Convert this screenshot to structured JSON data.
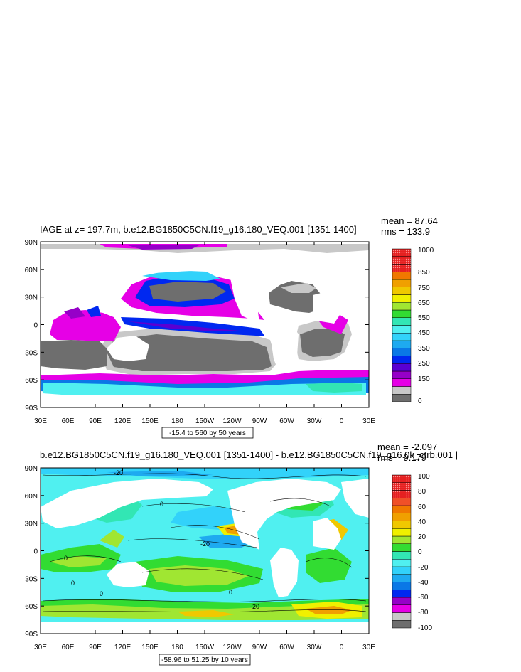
{
  "chart_data": [
    {
      "type": "heatmap",
      "title": "IAGE at z= 197.7m, b.e12.BG1850C5CN.f19_g16.180_VEQ.001 [1351-1400]",
      "stats": {
        "mean": "mean = 87.64",
        "rms": "rms = 133.9"
      },
      "lat_ticks": [
        "90N",
        "60N",
        "30N",
        "0",
        "30S",
        "60S",
        "90S"
      ],
      "lon_ticks": [
        "30E",
        "60E",
        "90E",
        "120E",
        "150E",
        "180",
        "150W",
        "120W",
        "90W",
        "60W",
        "30W",
        "0",
        "30E"
      ],
      "contour_info": "-15.4 to 560 by 50 years",
      "colorbar": {
        "labels": [
          "1000",
          "850",
          "750",
          "650",
          "550",
          "450",
          "350",
          "250",
          "150",
          "0"
        ],
        "colors": [
          "#6e6e6e",
          "#c8c8c8",
          "#e600e6",
          "#9600c8",
          "#5a00d2",
          "#0028f0",
          "#0a78e6",
          "#1eaaf0",
          "#32d2fa",
          "#50f0f0",
          "#32e6b4",
          "#32dc32",
          "#a0e632",
          "#f0f000",
          "#f0c800",
          "#f0a000",
          "#f07800",
          "#f05028",
          "#e61e1e",
          "#c80000"
        ]
      }
    },
    {
      "type": "heatmap",
      "title": "b.e12.BG1850C5CN.f19_g16.180_VEQ.001 [1351-1400] - b.e12.BG1850C5CN.f19_g16.0k_ctrb.001 |",
      "stats": {
        "mean": "mean = -2.097",
        "rms": "rms = 9.179"
      },
      "lat_ticks": [
        "90N",
        "60N",
        "30N",
        "0",
        "30S",
        "60S",
        "90S"
      ],
      "lon_ticks": [
        "30E",
        "60E",
        "90E",
        "120E",
        "150E",
        "180",
        "150W",
        "120W",
        "90W",
        "60W",
        "30W",
        "0",
        "30E"
      ],
      "contour_info": "-58.96 to 51.25 by 10 years",
      "contour_labels": [
        "-20",
        "0",
        "-20",
        "0",
        "0",
        "0",
        "-20",
        "0"
      ],
      "colorbar": {
        "labels": [
          "100",
          "80",
          "60",
          "40",
          "20",
          "0",
          "-20",
          "-40",
          "-60",
          "-80",
          "-100"
        ],
        "colors": [
          "#6e6e6e",
          "#c8c8c8",
          "#e600e6",
          "#9600c8",
          "#0028f0",
          "#0a78e6",
          "#1eaaf0",
          "#32d2fa",
          "#50f0f0",
          "#32e6b4",
          "#32dc32",
          "#a0e632",
          "#f0f000",
          "#f0c800",
          "#f0a000",
          "#f07800",
          "#f05028",
          "#e61e1e",
          "#c80000",
          "#aa0000"
        ]
      }
    }
  ]
}
